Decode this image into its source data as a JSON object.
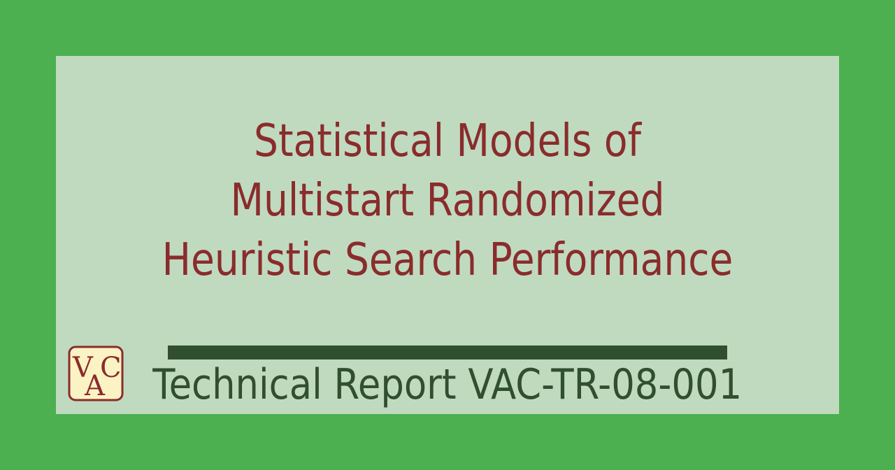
{
  "colors": {
    "page_background": "#4caf50",
    "panel_background": "#c0dac0",
    "title_color": "#8a2c2c",
    "report_color": "#2f4f2f",
    "logo_fill": "#fcf3c4",
    "logo_border": "#8a2c2c"
  },
  "title": {
    "lines": [
      "Statistical Models of",
      "Multistart Randomized",
      "Heuristic Search Performance"
    ]
  },
  "report": {
    "label": "Technical Report VAC-TR-08-001"
  },
  "logo": {
    "icon": "vac-logo-icon",
    "letters": {
      "v": "V",
      "a": "A",
      "c": "C"
    }
  }
}
